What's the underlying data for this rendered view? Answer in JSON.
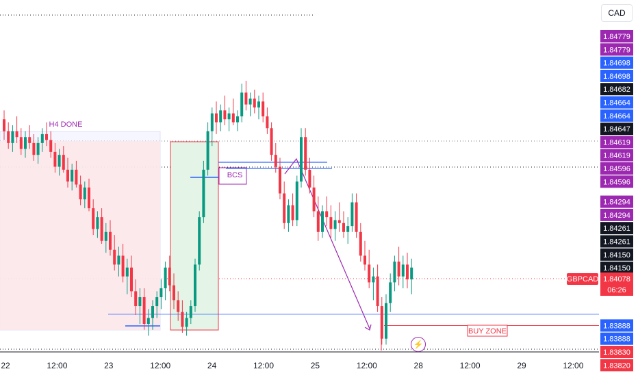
{
  "chart_data": {
    "type": "candlestick",
    "symbol": "GBPCAD",
    "currency": "CAD",
    "last_price": "1.84078",
    "countdown": "06:26",
    "y_range": [
      1.8381,
      1.849
    ],
    "x_ticks": [
      "22",
      "12:00",
      "23",
      "12:00",
      "24",
      "12:00",
      "25",
      "12:00",
      "28",
      "12:00",
      "29",
      "12:00"
    ],
    "price_labels": [
      {
        "value": "1.84779",
        "color": "#9c27b0"
      },
      {
        "value": "1.84779",
        "color": "#9c27b0"
      },
      {
        "value": "1.84698",
        "color": "#2962ff"
      },
      {
        "value": "1.84698",
        "color": "#2962ff"
      },
      {
        "value": "1.84682",
        "color": "#131722"
      },
      {
        "value": "1.84664",
        "color": "#2962ff"
      },
      {
        "value": "1.84664",
        "color": "#2962ff"
      },
      {
        "value": "1.84647",
        "color": "#131722"
      },
      {
        "value": "1.84619",
        "color": "#9c27b0"
      },
      {
        "value": "1.84619",
        "color": "#9c27b0"
      },
      {
        "value": "1.84596",
        "color": "#9c27b0"
      },
      {
        "value": "1.84596",
        "color": "#9c27b0"
      },
      {
        "value": "1.84294",
        "color": "#9c27b0"
      },
      {
        "value": "1.84294",
        "color": "#9c27b0"
      },
      {
        "value": "1.84261",
        "color": "#131722"
      },
      {
        "value": "1.84261",
        "color": "#131722"
      },
      {
        "value": "1.84150",
        "color": "#131722"
      },
      {
        "value": "1.84150",
        "color": "#131722"
      },
      {
        "value": "1.83888",
        "color": "#2962ff"
      },
      {
        "value": "1.83888",
        "color": "#2962ff"
      },
      {
        "value": "1.83830",
        "color": "#f23645"
      },
      {
        "value": "1.83820",
        "color": "#f23645"
      }
    ],
    "annotations": {
      "h4_done": "H4 DONE",
      "bcs": "BCS",
      "buy_zone": "BUY ZONE"
    },
    "candles": [
      [
        1.8459,
        1.8462,
        1.8452,
        1.8455
      ],
      [
        1.8455,
        1.8458,
        1.8449,
        1.8451
      ],
      [
        1.8451,
        1.8457,
        1.8448,
        1.8455
      ],
      [
        1.8455,
        1.846,
        1.8451,
        1.8453
      ],
      [
        1.8453,
        1.8456,
        1.8447,
        1.8449
      ],
      [
        1.8449,
        1.8455,
        1.8446,
        1.8453
      ],
      [
        1.8453,
        1.8457,
        1.8449,
        1.8451
      ],
      [
        1.8451,
        1.8454,
        1.8445,
        1.8447
      ],
      [
        1.8447,
        1.8453,
        1.8444,
        1.8451
      ],
      [
        1.8451,
        1.8456,
        1.8448,
        1.8454
      ],
      [
        1.8454,
        1.8458,
        1.845,
        1.8452
      ],
      [
        1.8452,
        1.8455,
        1.8446,
        1.8448
      ],
      [
        1.8448,
        1.8451,
        1.8441,
        1.8443
      ],
      [
        1.8443,
        1.8449,
        1.844,
        1.8447
      ],
      [
        1.8447,
        1.845,
        1.8441,
        1.8442
      ],
      [
        1.8442,
        1.8446,
        1.8436,
        1.8438
      ],
      [
        1.8438,
        1.8444,
        1.8435,
        1.8442
      ],
      [
        1.8442,
        1.8445,
        1.8436,
        1.8437
      ],
      [
        1.8437,
        1.844,
        1.843,
        1.8432
      ],
      [
        1.8432,
        1.8438,
        1.8429,
        1.8436
      ],
      [
        1.8436,
        1.8439,
        1.8428,
        1.8429
      ],
      [
        1.8429,
        1.8432,
        1.842,
        1.8422
      ],
      [
        1.8422,
        1.8428,
        1.8419,
        1.8426
      ],
      [
        1.8426,
        1.8429,
        1.8417,
        1.8418
      ],
      [
        1.8418,
        1.8424,
        1.8414,
        1.8421
      ],
      [
        1.8421,
        1.8425,
        1.8413,
        1.8415
      ],
      [
        1.8415,
        1.842,
        1.8408,
        1.841
      ],
      [
        1.841,
        1.8416,
        1.8406,
        1.8413
      ],
      [
        1.8413,
        1.8417,
        1.8404,
        1.8406
      ],
      [
        1.8406,
        1.8412,
        1.84,
        1.8409
      ],
      [
        1.8409,
        1.8413,
        1.8399,
        1.8401
      ],
      [
        1.8401,
        1.8405,
        1.8393,
        1.8396
      ],
      [
        1.8396,
        1.8402,
        1.839,
        1.8399
      ],
      [
        1.8399,
        1.8402,
        1.8388,
        1.839
      ],
      [
        1.839,
        1.8395,
        1.8386,
        1.8392
      ],
      [
        1.8392,
        1.8398,
        1.8388,
        1.8396
      ],
      [
        1.8396,
        1.8401,
        1.8392,
        1.8399
      ],
      [
        1.8399,
        1.8405,
        1.8395,
        1.8402
      ],
      [
        1.8402,
        1.8411,
        1.8398,
        1.8409
      ],
      [
        1.8409,
        1.8413,
        1.8401,
        1.8403
      ],
      [
        1.8403,
        1.8407,
        1.8395,
        1.8398
      ],
      [
        1.8398,
        1.8401,
        1.8391,
        1.8394
      ],
      [
        1.8394,
        1.8398,
        1.8387,
        1.8389
      ],
      [
        1.8389,
        1.8394,
        1.8386,
        1.8392
      ],
      [
        1.8392,
        1.8398,
        1.839,
        1.8396
      ],
      [
        1.8396,
        1.8412,
        1.8394,
        1.841
      ],
      [
        1.841,
        1.8428,
        1.8408,
        1.8426
      ],
      [
        1.8426,
        1.8445,
        1.8424,
        1.8442
      ],
      [
        1.8442,
        1.8458,
        1.844,
        1.8455
      ],
      [
        1.8455,
        1.8463,
        1.845,
        1.8461
      ],
      [
        1.8461,
        1.8465,
        1.8454,
        1.8458
      ],
      [
        1.8458,
        1.8464,
        1.8455,
        1.8462
      ],
      [
        1.8462,
        1.8467,
        1.8457,
        1.8459
      ],
      [
        1.8459,
        1.8463,
        1.8455,
        1.8461
      ],
      [
        1.8461,
        1.8466,
        1.8457,
        1.8458
      ],
      [
        1.8458,
        1.8462,
        1.8455,
        1.846
      ],
      [
        1.846,
        1.8471,
        1.8458,
        1.8468
      ],
      [
        1.8468,
        1.8472,
        1.8462,
        1.8464
      ],
      [
        1.8464,
        1.8468,
        1.846,
        1.8466
      ],
      [
        1.8466,
        1.8469,
        1.8461,
        1.8463
      ],
      [
        1.8463,
        1.8467,
        1.8459,
        1.8465
      ],
      [
        1.8465,
        1.8468,
        1.8458,
        1.846
      ],
      [
        1.846,
        1.8463,
        1.8454,
        1.8456
      ],
      [
        1.8456,
        1.8458,
        1.8445,
        1.8447
      ],
      [
        1.8447,
        1.8451,
        1.8441,
        1.8443
      ],
      [
        1.8443,
        1.8446,
        1.8432,
        1.8434
      ],
      [
        1.8434,
        1.8438,
        1.8422,
        1.8424
      ],
      [
        1.8424,
        1.8432,
        1.8421,
        1.843
      ],
      [
        1.843,
        1.8434,
        1.8423,
        1.8425
      ],
      [
        1.8425,
        1.844,
        1.8423,
        1.8438
      ],
      [
        1.8438,
        1.8456,
        1.8436,
        1.8453
      ],
      [
        1.8453,
        1.8456,
        1.844,
        1.8442
      ],
      [
        1.8442,
        1.8446,
        1.8434,
        1.8436
      ],
      [
        1.8436,
        1.844,
        1.8426,
        1.8428
      ],
      [
        1.8428,
        1.8433,
        1.8418,
        1.8421
      ],
      [
        1.8421,
        1.843,
        1.8419,
        1.8428
      ],
      [
        1.8428,
        1.8433,
        1.8423,
        1.8426
      ],
      [
        1.8426,
        1.843,
        1.8419,
        1.8422
      ],
      [
        1.8422,
        1.8428,
        1.8418,
        1.8425
      ],
      [
        1.8425,
        1.8431,
        1.8421,
        1.8424
      ],
      [
        1.8424,
        1.8428,
        1.8419,
        1.8421
      ],
      [
        1.8421,
        1.8426,
        1.8417,
        1.8423
      ],
      [
        1.8423,
        1.8434,
        1.8421,
        1.8431
      ],
      [
        1.8431,
        1.8434,
        1.8419,
        1.8421
      ],
      [
        1.8421,
        1.8424,
        1.8411,
        1.8413
      ],
      [
        1.8413,
        1.8418,
        1.8408,
        1.841
      ],
      [
        1.841,
        1.8415,
        1.8402,
        1.8404
      ],
      [
        1.8404,
        1.8409,
        1.8398,
        1.8406
      ],
      [
        1.8406,
        1.841,
        1.8394,
        1.8396
      ],
      [
        1.8396,
        1.8399,
        1.8383,
        1.8385
      ],
      [
        1.8385,
        1.84,
        1.8383,
        1.8397
      ],
      [
        1.8397,
        1.8407,
        1.8394,
        1.8404
      ],
      [
        1.8404,
        1.8413,
        1.8401,
        1.8411
      ],
      [
        1.8411,
        1.8416,
        1.8403,
        1.8406
      ],
      [
        1.8406,
        1.8413,
        1.8402,
        1.841
      ],
      [
        1.841,
        1.8414,
        1.8402,
        1.8405
      ],
      [
        1.8405,
        1.8412,
        1.84,
        1.8409
      ]
    ]
  }
}
